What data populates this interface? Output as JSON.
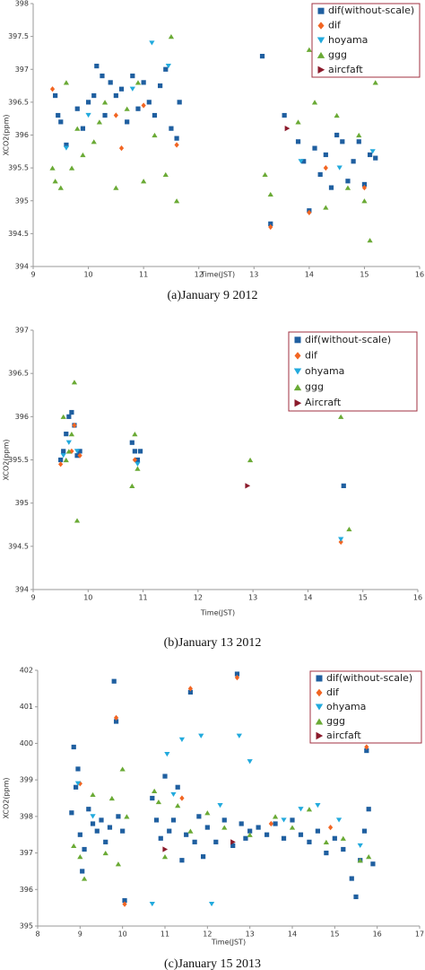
{
  "chart_data": [
    {
      "type": "scatter",
      "caption": "(a)January 9 2012",
      "x_label": "Time(JST)",
      "y_label": "XCO2(ppm)",
      "xlim": [
        9,
        16
      ],
      "xticks": [
        9,
        10,
        11,
        12,
        13,
        14,
        15,
        16
      ],
      "ylim": [
        394,
        398
      ],
      "yticks": [
        394,
        394.5,
        395,
        395.5,
        396,
        396.5,
        397,
        397.5,
        398
      ],
      "series": [
        {
          "name": "dif(without-scale)",
          "color": "#1f5fa0",
          "marker": "square",
          "x": [
            9.4,
            9.45,
            9.5,
            9.6,
            9.8,
            9.9,
            10.0,
            10.1,
            10.15,
            10.25,
            10.3,
            10.4,
            10.5,
            10.6,
            10.7,
            10.8,
            10.9,
            11.0,
            11.1,
            11.2,
            11.3,
            11.4,
            11.5,
            11.6,
            11.65,
            13.15,
            13.3,
            13.55,
            13.8,
            13.9,
            14.0,
            14.1,
            14.2,
            14.3,
            14.4,
            14.5,
            14.6,
            14.7,
            14.8,
            14.9,
            15.0,
            15.1,
            15.2
          ],
          "values": [
            396.6,
            396.3,
            396.2,
            395.85,
            396.4,
            396.1,
            396.5,
            396.6,
            397.05,
            396.9,
            396.3,
            396.8,
            396.6,
            396.7,
            396.2,
            396.9,
            396.4,
            396.8,
            396.5,
            396.3,
            396.75,
            397.0,
            396.1,
            395.95,
            396.5,
            397.2,
            394.65,
            396.3,
            395.9,
            395.6,
            394.85,
            395.8,
            395.4,
            395.7,
            395.2,
            396.0,
            395.9,
            395.3,
            395.6,
            395.9,
            395.25,
            395.7,
            395.65
          ]
        },
        {
          "name": "dif",
          "color": "#f26522",
          "marker": "diamond",
          "x": [
            9.35,
            10.5,
            11.0,
            11.6,
            13.3,
            14.0,
            14.3,
            15.0,
            10.6
          ],
          "values": [
            396.7,
            396.3,
            396.45,
            395.85,
            394.6,
            394.82,
            395.5,
            395.2,
            395.8
          ]
        },
        {
          "name": "hoyama",
          "color": "#22aadd",
          "marker": "tri-down",
          "x": [
            11.15,
            10.0,
            11.45,
            9.6,
            13.85,
            14.55,
            15.15,
            10.8
          ],
          "values": [
            397.4,
            396.3,
            397.05,
            395.8,
            395.6,
            395.5,
            395.75,
            396.7
          ]
        },
        {
          "name": "ggg",
          "color": "#6aaa35",
          "marker": "tri-up",
          "x": [
            9.35,
            9.4,
            9.5,
            9.6,
            9.7,
            9.8,
            9.9,
            10.1,
            10.2,
            10.3,
            10.5,
            10.7,
            10.9,
            11.0,
            11.2,
            11.4,
            11.5,
            11.6,
            13.2,
            13.3,
            13.8,
            14.0,
            14.1,
            14.3,
            14.5,
            14.7,
            14.9,
            15.0,
            15.1,
            15.2
          ],
          "values": [
            395.5,
            395.3,
            395.2,
            396.8,
            395.5,
            396.1,
            395.7,
            395.9,
            396.2,
            396.5,
            395.2,
            396.4,
            396.8,
            395.3,
            396.0,
            395.4,
            397.5,
            395.0,
            395.4,
            395.1,
            396.2,
            397.3,
            396.5,
            394.9,
            396.3,
            395.2,
            396.0,
            395.0,
            394.4,
            396.8
          ]
        },
        {
          "name": "aircfaft",
          "color": "#8b1a2b",
          "marker": "tri-right",
          "x": [
            13.6
          ],
          "values": [
            396.1
          ]
        }
      ]
    },
    {
      "type": "scatter",
      "caption": "(b)January 13 2012",
      "x_label": "Time(JST)",
      "y_label": "XCO2(ppm)",
      "xlim": [
        9,
        16
      ],
      "xticks": [
        9,
        10,
        11,
        12,
        13,
        14,
        15,
        16
      ],
      "ylim": [
        394,
        397
      ],
      "yticks": [
        394,
        394.5,
        395,
        395.5,
        396,
        396.5,
        397
      ],
      "series": [
        {
          "name": "dif(without-scale)",
          "color": "#1f5fa0",
          "marker": "square",
          "x": [
            9.5,
            9.55,
            9.6,
            9.65,
            9.7,
            9.75,
            9.8,
            9.85,
            10.8,
            10.85,
            10.9,
            10.95,
            14.65
          ],
          "values": [
            395.5,
            395.6,
            395.8,
            396.0,
            396.05,
            395.9,
            395.55,
            395.6,
            395.7,
            395.6,
            395.5,
            395.6,
            395.2
          ]
        },
        {
          "name": "dif",
          "color": "#f26522",
          "marker": "diamond",
          "x": [
            9.5,
            9.7,
            9.75,
            9.85,
            10.85,
            14.6
          ],
          "values": [
            395.45,
            395.6,
            395.9,
            395.55,
            395.5,
            394.55
          ]
        },
        {
          "name": "ohyama",
          "color": "#22aadd",
          "marker": "tri-down",
          "x": [
            9.55,
            9.65,
            9.8,
            10.9,
            14.6
          ],
          "values": [
            395.55,
            395.7,
            395.6,
            395.45,
            394.58
          ]
        },
        {
          "name": "ggg",
          "color": "#6aaa35",
          "marker": "tri-up",
          "x": [
            9.55,
            9.6,
            9.7,
            9.75,
            9.8,
            9.65,
            10.85,
            10.8,
            10.9,
            12.95,
            14.6,
            14.75
          ],
          "values": [
            396.0,
            395.5,
            395.8,
            396.4,
            394.8,
            395.6,
            395.8,
            395.2,
            395.4,
            395.5,
            396.0,
            394.7
          ]
        },
        {
          "name": "Aircraft",
          "color": "#8b1a2b",
          "marker": "tri-right",
          "x": [
            12.9
          ],
          "values": [
            395.2
          ]
        }
      ]
    },
    {
      "type": "scatter",
      "caption": "(c)January 15 2013",
      "x_label": "Time(JST)",
      "y_label": "XCO2(ppm)",
      "xlim": [
        8,
        17
      ],
      "xticks": [
        8,
        9,
        10,
        11,
        12,
        13,
        14,
        15,
        16,
        17
      ],
      "ylim": [
        395,
        402
      ],
      "yticks": [
        395,
        396,
        397,
        398,
        399,
        400,
        401,
        402
      ],
      "series": [
        {
          "name": "dif(without-scale)",
          "color": "#1f5fa0",
          "marker": "square",
          "x": [
            8.85,
            8.9,
            8.95,
            8.8,
            9.0,
            9.05,
            9.1,
            9.2,
            9.3,
            9.4,
            9.5,
            9.6,
            9.7,
            9.8,
            9.85,
            9.9,
            10.0,
            10.05,
            10.7,
            10.8,
            10.9,
            11.0,
            11.1,
            11.2,
            11.3,
            11.4,
            11.5,
            11.6,
            11.7,
            11.8,
            11.9,
            12.0,
            12.2,
            12.4,
            12.6,
            12.7,
            12.8,
            12.9,
            13.0,
            13.2,
            13.4,
            13.6,
            13.8,
            14.0,
            14.2,
            14.4,
            14.6,
            14.8,
            15.0,
            15.2,
            15.4,
            15.5,
            15.6,
            15.7,
            15.75,
            15.8,
            15.9
          ],
          "values": [
            399.9,
            398.8,
            399.3,
            398.1,
            397.5,
            396.5,
            397.1,
            398.2,
            397.8,
            397.6,
            397.9,
            397.3,
            397.7,
            401.7,
            400.6,
            398.0,
            397.6,
            395.7,
            398.5,
            397.9,
            397.4,
            399.1,
            397.6,
            397.9,
            398.8,
            396.8,
            397.5,
            401.4,
            397.3,
            398.0,
            396.9,
            397.7,
            397.3,
            397.9,
            397.2,
            401.9,
            397.8,
            397.4,
            397.6,
            397.7,
            397.5,
            397.8,
            397.4,
            397.9,
            397.5,
            397.3,
            397.6,
            397.0,
            397.4,
            397.1,
            396.3,
            395.8,
            396.8,
            397.6,
            399.8,
            398.2,
            396.7
          ]
        },
        {
          "name": "dif",
          "color": "#f26522",
          "marker": "diamond",
          "x": [
            9.85,
            10.05,
            11.6,
            12.7,
            11.4,
            9.0,
            15.75,
            14.9,
            13.5
          ],
          "values": [
            400.7,
            395.6,
            401.5,
            401.8,
            398.5,
            398.9,
            399.9,
            397.7,
            397.8
          ]
        },
        {
          "name": "ohyama",
          "color": "#22aadd",
          "marker": "tri-down",
          "x": [
            8.95,
            9.3,
            10.7,
            11.05,
            11.4,
            11.85,
            12.1,
            12.75,
            13.0,
            11.2,
            12.3,
            13.8,
            14.6,
            15.1,
            15.6,
            14.2
          ],
          "values": [
            398.9,
            398.0,
            395.6,
            399.7,
            400.1,
            400.2,
            395.6,
            400.2,
            399.5,
            398.6,
            398.3,
            397.9,
            398.3,
            397.9,
            397.2,
            398.2
          ]
        },
        {
          "name": "ggg",
          "color": "#6aaa35",
          "marker": "tri-up",
          "x": [
            8.85,
            9.0,
            9.1,
            9.3,
            9.6,
            9.75,
            9.9,
            10.0,
            10.1,
            10.75,
            10.85,
            11.0,
            11.3,
            11.6,
            12.0,
            12.4,
            13.0,
            13.6,
            14.0,
            14.4,
            14.8,
            15.2,
            15.6,
            15.8
          ],
          "values": [
            397.2,
            396.9,
            396.3,
            398.6,
            397.0,
            398.5,
            396.7,
            399.3,
            398.0,
            398.7,
            398.4,
            396.9,
            398.3,
            397.6,
            398.1,
            397.7,
            397.5,
            398.0,
            397.7,
            398.2,
            397.3,
            397.4,
            396.8,
            396.9
          ]
        },
        {
          "name": "aircfaft",
          "color": "#8b1a2b",
          "marker": "tri-right",
          "x": [
            11.0,
            12.6
          ],
          "values": [
            397.1,
            397.3
          ]
        }
      ]
    }
  ]
}
